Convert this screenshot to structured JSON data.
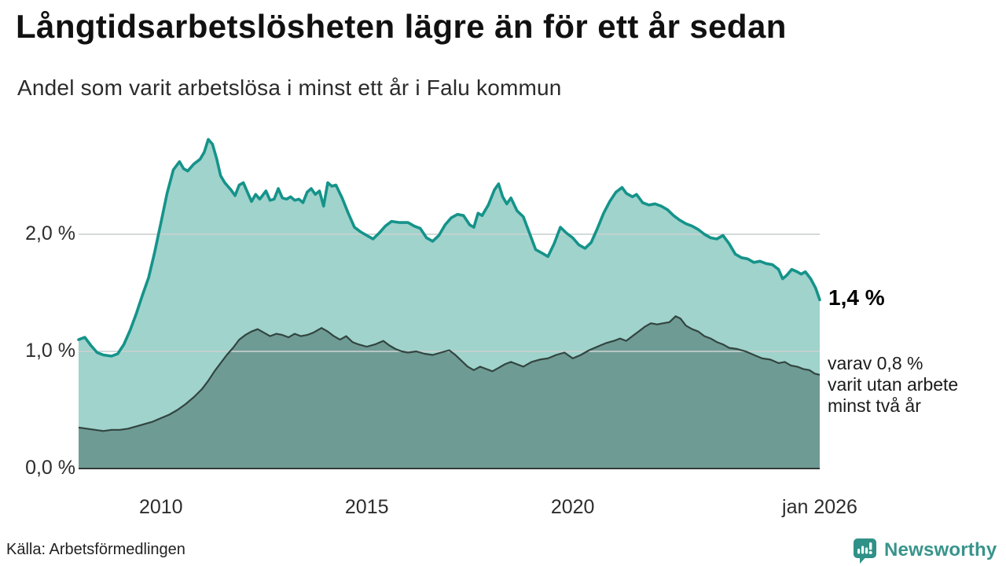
{
  "header": {
    "title": "Långtidsarbetslösheten lägre än för ett år sedan",
    "subtitle": "Andel som varit arbetslösa i minst ett år i Falu kommun"
  },
  "annotations": {
    "end_value_label": "1,4 %",
    "note_lines": [
      "varav 0,8 %",
      "varit utan arbete",
      "minst två år"
    ]
  },
  "footer": {
    "source": "Källa: Arbetsförmedlingen",
    "brand": "Newsworthy",
    "logo_icon": "bar-chart-speech-bubble-icon"
  },
  "colors": {
    "accent_line": "#15938a",
    "fill_light": "#9fd3cc",
    "fill_dark": "#6f9b95",
    "line_dark": "#324540",
    "grid": "#c9d1d0",
    "baseline": "#333c3a",
    "brand": "#38948b",
    "text": "#2d2d2d"
  },
  "chart_data": {
    "type": "area",
    "title": "Långtidsarbetslösheten lägre än för ett år sedan",
    "subtitle": "Andel som varit arbetslösa i minst ett år i Falu kommun",
    "source": "Källa: Arbetsförmedlingen",
    "unit": "%",
    "grid": "horizontal",
    "grid_color": "#c9d1d0",
    "baseline_color": "#333c3a",
    "x_axis": {
      "range": [
        2008.0,
        2026.0
      ],
      "ticks": [
        {
          "x": 2010,
          "label": "2010"
        },
        {
          "x": 2015,
          "label": "2015"
        },
        {
          "x": 2020,
          "label": "2020"
        },
        {
          "x": 2026,
          "label": "jan 2026"
        }
      ]
    },
    "y_axis": {
      "range": [
        0,
        3.0
      ],
      "ticks": [
        {
          "value": 0.0,
          "label": "0,0 %"
        },
        {
          "value": 1.0,
          "label": "1,0 %"
        },
        {
          "value": 2.0,
          "label": "2,0 %"
        }
      ]
    },
    "series": [
      {
        "name": "Arbetslösa minst ett år",
        "end_label": "1,4 %",
        "end_value": 1.4,
        "line": "#15938a",
        "fill": "#9fd3cc",
        "points": [
          [
            2008.0,
            1.1
          ],
          [
            2008.15,
            1.12
          ],
          [
            2008.3,
            1.05
          ],
          [
            2008.45,
            0.99
          ],
          [
            2008.6,
            0.97
          ],
          [
            2008.8,
            0.96
          ],
          [
            2008.95,
            0.98
          ],
          [
            2009.1,
            1.06
          ],
          [
            2009.25,
            1.18
          ],
          [
            2009.4,
            1.32
          ],
          [
            2009.55,
            1.48
          ],
          [
            2009.7,
            1.63
          ],
          [
            2009.85,
            1.85
          ],
          [
            2010.0,
            2.1
          ],
          [
            2010.15,
            2.35
          ],
          [
            2010.3,
            2.55
          ],
          [
            2010.45,
            2.62
          ],
          [
            2010.55,
            2.56
          ],
          [
            2010.65,
            2.54
          ],
          [
            2010.8,
            2.6
          ],
          [
            2010.95,
            2.64
          ],
          [
            2011.05,
            2.7
          ],
          [
            2011.15,
            2.81
          ],
          [
            2011.25,
            2.77
          ],
          [
            2011.35,
            2.65
          ],
          [
            2011.45,
            2.5
          ],
          [
            2011.55,
            2.44
          ],
          [
            2011.7,
            2.38
          ],
          [
            2011.8,
            2.33
          ],
          [
            2011.9,
            2.42
          ],
          [
            2012.0,
            2.44
          ],
          [
            2012.1,
            2.36
          ],
          [
            2012.2,
            2.28
          ],
          [
            2012.3,
            2.34
          ],
          [
            2012.4,
            2.3
          ],
          [
            2012.55,
            2.37
          ],
          [
            2012.65,
            2.29
          ],
          [
            2012.75,
            2.3
          ],
          [
            2012.85,
            2.39
          ],
          [
            2012.95,
            2.31
          ],
          [
            2013.05,
            2.3
          ],
          [
            2013.15,
            2.32
          ],
          [
            2013.25,
            2.29
          ],
          [
            2013.35,
            2.3
          ],
          [
            2013.45,
            2.27
          ],
          [
            2013.55,
            2.36
          ],
          [
            2013.65,
            2.39
          ],
          [
            2013.75,
            2.34
          ],
          [
            2013.85,
            2.37
          ],
          [
            2013.95,
            2.24
          ],
          [
            2014.05,
            2.44
          ],
          [
            2014.15,
            2.41
          ],
          [
            2014.25,
            2.42
          ],
          [
            2014.4,
            2.31
          ],
          [
            2014.55,
            2.18
          ],
          [
            2014.7,
            2.06
          ],
          [
            2014.85,
            2.02
          ],
          [
            2015.0,
            1.99
          ],
          [
            2015.15,
            1.96
          ],
          [
            2015.3,
            2.01
          ],
          [
            2015.45,
            2.07
          ],
          [
            2015.6,
            2.11
          ],
          [
            2015.8,
            2.1
          ],
          [
            2016.0,
            2.1
          ],
          [
            2016.15,
            2.07
          ],
          [
            2016.3,
            2.05
          ],
          [
            2016.45,
            1.97
          ],
          [
            2016.6,
            1.94
          ],
          [
            2016.75,
            1.99
          ],
          [
            2016.9,
            2.08
          ],
          [
            2017.05,
            2.14
          ],
          [
            2017.2,
            2.17
          ],
          [
            2017.35,
            2.16
          ],
          [
            2017.5,
            2.08
          ],
          [
            2017.6,
            2.06
          ],
          [
            2017.7,
            2.18
          ],
          [
            2017.8,
            2.16
          ],
          [
            2017.95,
            2.25
          ],
          [
            2018.1,
            2.38
          ],
          [
            2018.2,
            2.43
          ],
          [
            2018.3,
            2.32
          ],
          [
            2018.4,
            2.26
          ],
          [
            2018.5,
            2.31
          ],
          [
            2018.65,
            2.2
          ],
          [
            2018.8,
            2.15
          ],
          [
            2018.95,
            2.01
          ],
          [
            2019.1,
            1.87
          ],
          [
            2019.25,
            1.84
          ],
          [
            2019.4,
            1.81
          ],
          [
            2019.55,
            1.92
          ],
          [
            2019.7,
            2.06
          ],
          [
            2019.85,
            2.01
          ],
          [
            2020.0,
            1.97
          ],
          [
            2020.15,
            1.91
          ],
          [
            2020.3,
            1.88
          ],
          [
            2020.45,
            1.93
          ],
          [
            2020.6,
            2.05
          ],
          [
            2020.75,
            2.18
          ],
          [
            2020.9,
            2.28
          ],
          [
            2021.05,
            2.36
          ],
          [
            2021.2,
            2.4
          ],
          [
            2021.3,
            2.35
          ],
          [
            2021.45,
            2.32
          ],
          [
            2021.55,
            2.34
          ],
          [
            2021.7,
            2.27
          ],
          [
            2021.85,
            2.25
          ],
          [
            2022.0,
            2.26
          ],
          [
            2022.15,
            2.24
          ],
          [
            2022.3,
            2.21
          ],
          [
            2022.45,
            2.16
          ],
          [
            2022.6,
            2.12
          ],
          [
            2022.75,
            2.09
          ],
          [
            2022.9,
            2.07
          ],
          [
            2023.05,
            2.04
          ],
          [
            2023.2,
            2.0
          ],
          [
            2023.35,
            1.97
          ],
          [
            2023.5,
            1.96
          ],
          [
            2023.65,
            1.99
          ],
          [
            2023.8,
            1.92
          ],
          [
            2023.95,
            1.83
          ],
          [
            2024.1,
            1.8
          ],
          [
            2024.25,
            1.79
          ],
          [
            2024.4,
            1.76
          ],
          [
            2024.55,
            1.77
          ],
          [
            2024.7,
            1.75
          ],
          [
            2024.85,
            1.74
          ],
          [
            2025.0,
            1.7
          ],
          [
            2025.1,
            1.62
          ],
          [
            2025.2,
            1.65
          ],
          [
            2025.32,
            1.7
          ],
          [
            2025.45,
            1.68
          ],
          [
            2025.55,
            1.66
          ],
          [
            2025.65,
            1.68
          ],
          [
            2025.78,
            1.62
          ],
          [
            2025.9,
            1.54
          ],
          [
            2026.0,
            1.44
          ]
        ]
      },
      {
        "name": "Arbetslösa minst två år",
        "end_label": "0,8 %",
        "end_value": 0.8,
        "line": "#324540",
        "fill": "#6f9b95",
        "points": [
          [
            2008.0,
            0.35
          ],
          [
            2008.2,
            0.34
          ],
          [
            2008.4,
            0.33
          ],
          [
            2008.6,
            0.32
          ],
          [
            2008.8,
            0.33
          ],
          [
            2009.0,
            0.33
          ],
          [
            2009.2,
            0.34
          ],
          [
            2009.4,
            0.36
          ],
          [
            2009.6,
            0.38
          ],
          [
            2009.8,
            0.4
          ],
          [
            2010.0,
            0.43
          ],
          [
            2010.2,
            0.46
          ],
          [
            2010.4,
            0.5
          ],
          [
            2010.6,
            0.55
          ],
          [
            2010.8,
            0.61
          ],
          [
            2011.0,
            0.68
          ],
          [
            2011.15,
            0.75
          ],
          [
            2011.3,
            0.83
          ],
          [
            2011.45,
            0.9
          ],
          [
            2011.6,
            0.97
          ],
          [
            2011.75,
            1.03
          ],
          [
            2011.9,
            1.1
          ],
          [
            2012.05,
            1.14
          ],
          [
            2012.2,
            1.17
          ],
          [
            2012.35,
            1.19
          ],
          [
            2012.5,
            1.16
          ],
          [
            2012.65,
            1.13
          ],
          [
            2012.8,
            1.15
          ],
          [
            2012.95,
            1.14
          ],
          [
            2013.1,
            1.12
          ],
          [
            2013.25,
            1.15
          ],
          [
            2013.4,
            1.13
          ],
          [
            2013.55,
            1.14
          ],
          [
            2013.7,
            1.16
          ],
          [
            2013.9,
            1.2
          ],
          [
            2014.05,
            1.17
          ],
          [
            2014.2,
            1.13
          ],
          [
            2014.35,
            1.1
          ],
          [
            2014.5,
            1.13
          ],
          [
            2014.65,
            1.08
          ],
          [
            2014.8,
            1.06
          ],
          [
            2015.0,
            1.04
          ],
          [
            2015.2,
            1.06
          ],
          [
            2015.4,
            1.09
          ],
          [
            2015.55,
            1.05
          ],
          [
            2015.7,
            1.02
          ],
          [
            2015.85,
            1.0
          ],
          [
            2016.0,
            0.99
          ],
          [
            2016.2,
            1.0
          ],
          [
            2016.4,
            0.98
          ],
          [
            2016.6,
            0.97
          ],
          [
            2016.8,
            0.99
          ],
          [
            2017.0,
            1.01
          ],
          [
            2017.15,
            0.97
          ],
          [
            2017.3,
            0.92
          ],
          [
            2017.45,
            0.87
          ],
          [
            2017.6,
            0.84
          ],
          [
            2017.75,
            0.87
          ],
          [
            2017.9,
            0.85
          ],
          [
            2018.05,
            0.83
          ],
          [
            2018.2,
            0.86
          ],
          [
            2018.35,
            0.89
          ],
          [
            2018.5,
            0.91
          ],
          [
            2018.65,
            0.89
          ],
          [
            2018.8,
            0.87
          ],
          [
            2019.0,
            0.91
          ],
          [
            2019.2,
            0.93
          ],
          [
            2019.4,
            0.94
          ],
          [
            2019.6,
            0.97
          ],
          [
            2019.8,
            0.99
          ],
          [
            2020.0,
            0.94
          ],
          [
            2020.2,
            0.97
          ],
          [
            2020.4,
            1.01
          ],
          [
            2020.6,
            1.04
          ],
          [
            2020.8,
            1.07
          ],
          [
            2021.0,
            1.09
          ],
          [
            2021.15,
            1.11
          ],
          [
            2021.3,
            1.09
          ],
          [
            2021.45,
            1.13
          ],
          [
            2021.6,
            1.17
          ],
          [
            2021.75,
            1.21
          ],
          [
            2021.9,
            1.24
          ],
          [
            2022.05,
            1.23
          ],
          [
            2022.2,
            1.24
          ],
          [
            2022.35,
            1.25
          ],
          [
            2022.5,
            1.3
          ],
          [
            2022.62,
            1.28
          ],
          [
            2022.75,
            1.22
          ],
          [
            2022.9,
            1.19
          ],
          [
            2023.05,
            1.17
          ],
          [
            2023.2,
            1.13
          ],
          [
            2023.35,
            1.11
          ],
          [
            2023.5,
            1.08
          ],
          [
            2023.65,
            1.06
          ],
          [
            2023.8,
            1.03
          ],
          [
            2024.0,
            1.02
          ],
          [
            2024.2,
            1.0
          ],
          [
            2024.4,
            0.97
          ],
          [
            2024.6,
            0.94
          ],
          [
            2024.8,
            0.93
          ],
          [
            2025.0,
            0.9
          ],
          [
            2025.15,
            0.91
          ],
          [
            2025.3,
            0.88
          ],
          [
            2025.45,
            0.87
          ],
          [
            2025.6,
            0.85
          ],
          [
            2025.75,
            0.84
          ],
          [
            2025.88,
            0.81
          ],
          [
            2026.0,
            0.8
          ]
        ]
      }
    ]
  }
}
